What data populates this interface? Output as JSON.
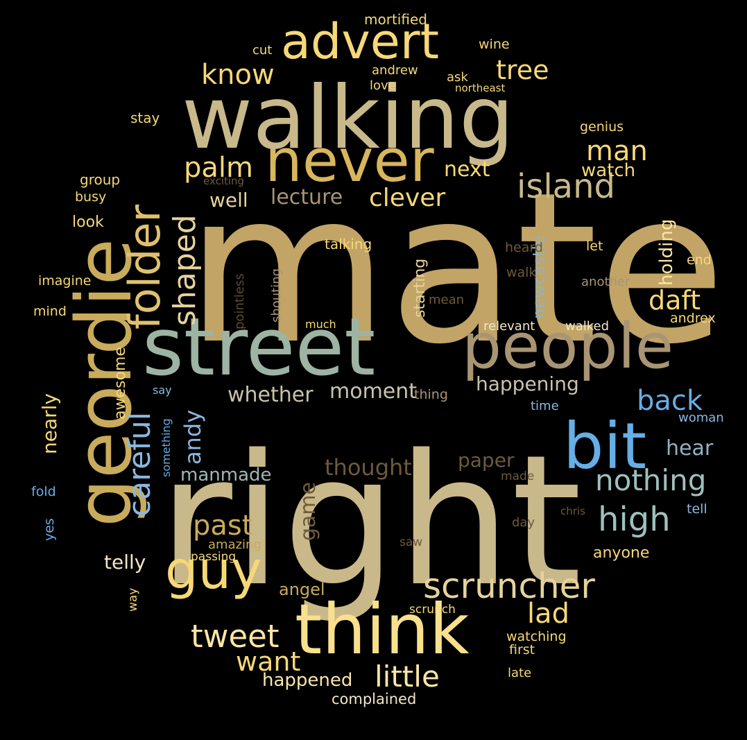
{
  "colors": {
    "background": "#000000",
    "gold": "#c4a768",
    "khaki": "#c9b98a",
    "yellow": "#f6d878",
    "light_yellow": "#fbe6a6",
    "sage": "#9db3a3",
    "tan": "#a99573",
    "blue": "#66aee6",
    "steel": "#8fb3c2",
    "brown": "#6d5a3c",
    "dark_brown": "#5b4a30",
    "cream": "#f3e7c6",
    "white": "#f5f0e1"
  },
  "words": [
    {
      "text": "mate",
      "color": "#c2a466"
    },
    {
      "text": "right",
      "color": "#c9b98a"
    },
    {
      "text": "walking",
      "color": "#c9b98a"
    },
    {
      "text": "street",
      "color": "#9db3a3"
    },
    {
      "text": "people",
      "color": "#a99573"
    },
    {
      "text": "geordie",
      "color": "#c9ab5c"
    },
    {
      "text": "think",
      "color": "#f9e08c"
    },
    {
      "text": "never",
      "color": "#d8b65e"
    },
    {
      "text": "bit",
      "color": "#66aee6"
    },
    {
      "text": "advert",
      "color": "#f6d878"
    },
    {
      "text": "guy",
      "color": "#f6d878"
    },
    {
      "text": "folder",
      "color": "#e0c070"
    },
    {
      "text": "scruncher",
      "color": "#e6d39b"
    },
    {
      "text": "island",
      "color": "#c9b98a"
    },
    {
      "text": "high",
      "color": "#9fc0bd"
    },
    {
      "text": "nothing",
      "color": "#9fc0bd"
    },
    {
      "text": "little",
      "color": "#fbe6a6"
    },
    {
      "text": "tweet",
      "color": "#fbe6a6"
    },
    {
      "text": "shaped",
      "color": "#e6d39b"
    },
    {
      "text": "careful",
      "color": "#8ab8e0"
    },
    {
      "text": "know",
      "color": "#f6d878"
    },
    {
      "text": "tree",
      "color": "#f6d878"
    },
    {
      "text": "palm",
      "color": "#f6d878"
    },
    {
      "text": "man",
      "color": "#f6d878"
    },
    {
      "text": "back",
      "color": "#66aee6"
    },
    {
      "text": "past",
      "color": "#c9ab5c"
    },
    {
      "text": "daft",
      "color": "#f6d878"
    },
    {
      "text": "lad",
      "color": "#f6d878"
    },
    {
      "text": "want",
      "color": "#f6d878"
    },
    {
      "text": "clever",
      "color": "#f6d878"
    },
    {
      "text": "next",
      "color": "#f6d878"
    },
    {
      "text": "game",
      "color": "#6d5a3c"
    },
    {
      "text": "andy",
      "color": "#8ab8e0"
    },
    {
      "text": "thought",
      "color": "#6d5a3c"
    },
    {
      "text": "whether",
      "color": "#c9c3ab"
    },
    {
      "text": "moment",
      "color": "#c9c3ab"
    },
    {
      "text": "happening",
      "color": "#c9c3ab"
    },
    {
      "text": "lecture",
      "color": "#a99573"
    },
    {
      "text": "well",
      "color": "#e6d39b"
    },
    {
      "text": "watch",
      "color": "#f6d878"
    },
    {
      "text": "nearly",
      "color": "#f6d878"
    },
    {
      "text": "paper",
      "color": "#6d5a3c"
    },
    {
      "text": "hear",
      "color": "#8fb3c2"
    },
    {
      "text": "manmade",
      "color": "#9fb7b4"
    },
    {
      "text": "holding",
      "color": "#fbe6a6"
    },
    {
      "text": "newcastle",
      "color": "#8fb3c2"
    },
    {
      "text": "happened",
      "color": "#fbe6a6"
    },
    {
      "text": "telly",
      "color": "#f3e7c6"
    },
    {
      "text": "angel",
      "color": "#c9ab5c"
    },
    {
      "text": "anyone",
      "color": "#f6d878"
    },
    {
      "text": "starting",
      "color": "#e6d39b"
    },
    {
      "text": "awesome",
      "color": "#f6d878"
    },
    {
      "text": "look",
      "color": "#f6d878"
    },
    {
      "text": "mortified",
      "color": "#f6d878"
    },
    {
      "text": "wine",
      "color": "#f6d878"
    },
    {
      "text": "cut",
      "color": "#f6d878"
    },
    {
      "text": "andrew",
      "color": "#f6d878"
    },
    {
      "text": "ask",
      "color": "#f6d878"
    },
    {
      "text": "love",
      "color": "#f6d878"
    },
    {
      "text": "northeast",
      "color": "#f6d878"
    },
    {
      "text": "stay",
      "color": "#f6d878"
    },
    {
      "text": "genius",
      "color": "#f6d878"
    },
    {
      "text": "group",
      "color": "#f6d878"
    },
    {
      "text": "exciting",
      "color": "#6d5a3c"
    },
    {
      "text": "busy",
      "color": "#f6d878"
    },
    {
      "text": "talking",
      "color": "#f6d878"
    },
    {
      "text": "heard",
      "color": "#6d5a3c"
    },
    {
      "text": "let",
      "color": "#f6d878"
    },
    {
      "text": "end",
      "color": "#f6d878"
    },
    {
      "text": "walk",
      "color": "#6d5a3c"
    },
    {
      "text": "another",
      "color": "#a99573"
    },
    {
      "text": "imagine",
      "color": "#f6d878"
    },
    {
      "text": "pointless",
      "color": "#5b4a30"
    },
    {
      "text": "shouting",
      "color": "#a99573"
    },
    {
      "text": "mean",
      "color": "#6d5a3c"
    },
    {
      "text": "mind",
      "color": "#f6d878"
    },
    {
      "text": "much",
      "color": "#f6d878"
    },
    {
      "text": "relevant",
      "color": "#f3e7c6"
    },
    {
      "text": "walked",
      "color": "#f3e7c6"
    },
    {
      "text": "andrex",
      "color": "#f6d878"
    },
    {
      "text": "say",
      "color": "#8ab8e0"
    },
    {
      "text": "thing",
      "color": "#a99573"
    },
    {
      "text": "time",
      "color": "#8ab8e0"
    },
    {
      "text": "something",
      "color": "#66aee6"
    },
    {
      "text": "woman",
      "color": "#8ab8e0"
    },
    {
      "text": "fold",
      "color": "#66aee6"
    },
    {
      "text": "made",
      "color": "#6d5a3c"
    },
    {
      "text": "tell",
      "color": "#8ab8e0"
    },
    {
      "text": "chris",
      "color": "#6d5a3c"
    },
    {
      "text": "yes",
      "color": "#66aee6"
    },
    {
      "text": "day",
      "color": "#6d5a3c"
    },
    {
      "text": "amazing",
      "color": "#c9ab5c"
    },
    {
      "text": "saw",
      "color": "#6d5a3c"
    },
    {
      "text": "passing",
      "color": "#f6d878"
    },
    {
      "text": "way",
      "color": "#f6d878"
    },
    {
      "text": "scrunch",
      "color": "#f6d878"
    },
    {
      "text": "watching",
      "color": "#f6d878"
    },
    {
      "text": "first",
      "color": "#f6d878"
    },
    {
      "text": "late",
      "color": "#f6d878"
    },
    {
      "text": "complained",
      "color": "#f3e7c6"
    }
  ]
}
